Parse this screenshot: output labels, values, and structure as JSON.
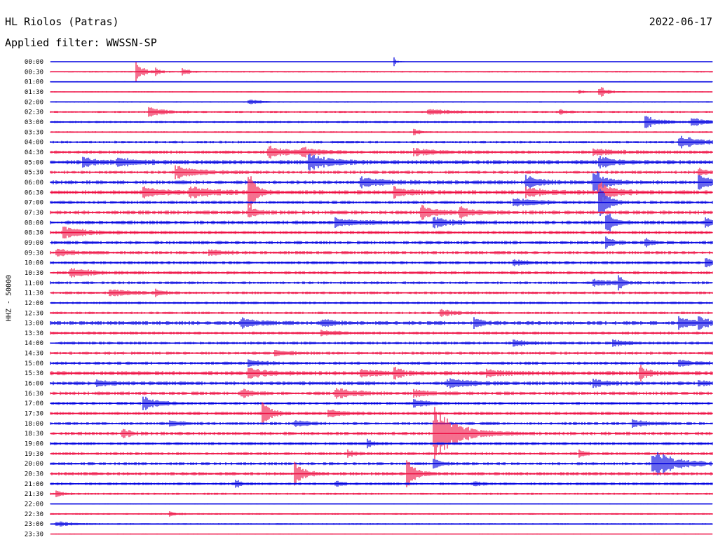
{
  "header": {
    "station": "HL Riolos (Patras)",
    "date": "2022-06-17",
    "filter": "Applied filter: WWSSN-SP"
  },
  "chart_data": {
    "type": "line",
    "chart_kind": "helicorder",
    "ylabel": "HHZ - 50000",
    "colors": [
      "#0000e0",
      "#ee1144"
    ],
    "rows": [
      {
        "label": "00:00",
        "color": "#0000e0",
        "noise": 0.3,
        "events": [
          {
            "t": 0.52,
            "amp": 6,
            "dur": 0.004
          }
        ]
      },
      {
        "label": "00:30",
        "color": "#ee1144",
        "noise": 0.7,
        "events": [
          {
            "t": 0.13,
            "amp": 16,
            "dur": 0.01
          },
          {
            "t": 0.16,
            "amp": 6,
            "dur": 0.006
          },
          {
            "t": 0.2,
            "amp": 7,
            "dur": 0.008
          }
        ]
      },
      {
        "label": "01:00",
        "color": "#0000e0",
        "noise": 0.5,
        "events": []
      },
      {
        "label": "01:30",
        "color": "#ee1144",
        "noise": 0.5,
        "events": [
          {
            "t": 0.8,
            "amp": 4,
            "dur": 0.005
          },
          {
            "t": 0.83,
            "amp": 9,
            "dur": 0.01
          }
        ]
      },
      {
        "label": "02:00",
        "color": "#0000e0",
        "noise": 0.6,
        "events": [
          {
            "t": 0.3,
            "amp": 3,
            "dur": 0.02
          }
        ]
      },
      {
        "label": "02:30",
        "color": "#ee1144",
        "noise": 1.0,
        "events": [
          {
            "t": 0.15,
            "amp": 7,
            "dur": 0.02
          },
          {
            "t": 0.57,
            "amp": 4,
            "dur": 0.04
          },
          {
            "t": 0.77,
            "amp": 3,
            "dur": 0.01
          }
        ]
      },
      {
        "label": "03:00",
        "color": "#0000e0",
        "noise": 1.0,
        "events": [
          {
            "t": 0.9,
            "amp": 8,
            "dur": 0.02
          },
          {
            "t": 0.97,
            "amp": 6,
            "dur": 0.02
          }
        ]
      },
      {
        "label": "03:30",
        "color": "#ee1144",
        "noise": 0.8,
        "events": [
          {
            "t": 0.55,
            "amp": 4,
            "dur": 0.01
          }
        ]
      },
      {
        "label": "04:00",
        "color": "#0000e0",
        "noise": 1.2,
        "events": [
          {
            "t": 0.95,
            "amp": 9,
            "dur": 0.03
          }
        ]
      },
      {
        "label": "04:30",
        "color": "#ee1144",
        "noise": 1.5,
        "events": [
          {
            "t": 0.33,
            "amp": 8,
            "dur": 0.03
          },
          {
            "t": 0.38,
            "amp": 6,
            "dur": 0.02
          },
          {
            "t": 0.55,
            "amp": 5,
            "dur": 0.03
          },
          {
            "t": 0.82,
            "amp": 5,
            "dur": 0.03
          }
        ]
      },
      {
        "label": "05:00",
        "color": "#0000e0",
        "noise": 2.0,
        "events": [
          {
            "t": 0.05,
            "amp": 6,
            "dur": 0.02
          },
          {
            "t": 0.1,
            "amp": 5,
            "dur": 0.03
          },
          {
            "t": 0.39,
            "amp": 12,
            "dur": 0.03
          },
          {
            "t": 0.83,
            "amp": 8,
            "dur": 0.02
          }
        ]
      },
      {
        "label": "05:30",
        "color": "#ee1144",
        "noise": 1.5,
        "events": [
          {
            "t": 0.19,
            "amp": 9,
            "dur": 0.03
          },
          {
            "t": 0.98,
            "amp": 6,
            "dur": 0.01
          }
        ]
      },
      {
        "label": "06:00",
        "color": "#0000e0",
        "noise": 1.8,
        "events": [
          {
            "t": 0.47,
            "amp": 7,
            "dur": 0.03
          },
          {
            "t": 0.72,
            "amp": 9,
            "dur": 0.02
          },
          {
            "t": 0.82,
            "amp": 22,
            "dur": 0.015
          },
          {
            "t": 0.98,
            "amp": 10,
            "dur": 0.02
          }
        ]
      },
      {
        "label": "06:30",
        "color": "#ee1144",
        "noise": 2.0,
        "events": [
          {
            "t": 0.14,
            "amp": 7,
            "dur": 0.03
          },
          {
            "t": 0.21,
            "amp": 9,
            "dur": 0.03
          },
          {
            "t": 0.3,
            "amp": 28,
            "dur": 0.01
          },
          {
            "t": 0.52,
            "amp": 7,
            "dur": 0.02
          },
          {
            "t": 0.72,
            "amp": 6,
            "dur": 0.03
          },
          {
            "t": 0.83,
            "amp": 14,
            "dur": 0.02
          }
        ]
      },
      {
        "label": "07:00",
        "color": "#0000e0",
        "noise": 1.5,
        "events": [
          {
            "t": 0.7,
            "amp": 6,
            "dur": 0.03
          },
          {
            "t": 0.83,
            "amp": 30,
            "dur": 0.01
          }
        ]
      },
      {
        "label": "07:30",
        "color": "#ee1144",
        "noise": 1.8,
        "events": [
          {
            "t": 0.3,
            "amp": 10,
            "dur": 0.01
          },
          {
            "t": 0.56,
            "amp": 11,
            "dur": 0.02
          },
          {
            "t": 0.62,
            "amp": 7,
            "dur": 0.02
          }
        ]
      },
      {
        "label": "08:00",
        "color": "#0000e0",
        "noise": 1.8,
        "events": [
          {
            "t": 0.43,
            "amp": 6,
            "dur": 0.03
          },
          {
            "t": 0.58,
            "amp": 8,
            "dur": 0.02
          },
          {
            "t": 0.84,
            "amp": 20,
            "dur": 0.01
          },
          {
            "t": 0.99,
            "amp": 9,
            "dur": 0.01
          }
        ]
      },
      {
        "label": "08:30",
        "color": "#ee1144",
        "noise": 1.6,
        "events": [
          {
            "t": 0.02,
            "amp": 8,
            "dur": 0.03
          }
        ]
      },
      {
        "label": "09:00",
        "color": "#0000e0",
        "noise": 1.6,
        "events": [
          {
            "t": 0.84,
            "amp": 8,
            "dur": 0.01
          },
          {
            "t": 0.9,
            "amp": 6,
            "dur": 0.01
          }
        ]
      },
      {
        "label": "09:30",
        "color": "#ee1144",
        "noise": 1.5,
        "events": [
          {
            "t": 0.01,
            "amp": 5,
            "dur": 0.02
          },
          {
            "t": 0.24,
            "amp": 4,
            "dur": 0.02
          }
        ]
      },
      {
        "label": "10:00",
        "color": "#0000e0",
        "noise": 1.5,
        "events": [
          {
            "t": 0.7,
            "amp": 4,
            "dur": 0.02
          },
          {
            "t": 0.99,
            "amp": 8,
            "dur": 0.01
          }
        ]
      },
      {
        "label": "10:30",
        "color": "#ee1144",
        "noise": 1.5,
        "events": [
          {
            "t": 0.03,
            "amp": 7,
            "dur": 0.03
          }
        ]
      },
      {
        "label": "11:00",
        "color": "#0000e0",
        "noise": 1.3,
        "events": [
          {
            "t": 0.82,
            "amp": 5,
            "dur": 0.03
          },
          {
            "t": 0.86,
            "amp": 12,
            "dur": 0.005
          }
        ]
      },
      {
        "label": "11:30",
        "color": "#ee1144",
        "noise": 1.3,
        "events": [
          {
            "t": 0.09,
            "amp": 5,
            "dur": 0.03
          },
          {
            "t": 0.16,
            "amp": 4,
            "dur": 0.01
          }
        ]
      },
      {
        "label": "12:00",
        "color": "#0000e0",
        "noise": 1.2,
        "events": []
      },
      {
        "label": "12:30",
        "color": "#ee1144",
        "noise": 1.2,
        "events": [
          {
            "t": 0.59,
            "amp": 5,
            "dur": 0.02
          }
        ]
      },
      {
        "label": "13:00",
        "color": "#0000e0",
        "noise": 1.8,
        "events": [
          {
            "t": 0.29,
            "amp": 7,
            "dur": 0.02
          },
          {
            "t": 0.41,
            "amp": 5,
            "dur": 0.02
          },
          {
            "t": 0.64,
            "amp": 8,
            "dur": 0.01
          },
          {
            "t": 0.95,
            "amp": 9,
            "dur": 0.02
          },
          {
            "t": 0.98,
            "amp": 6,
            "dur": 0.02
          }
        ]
      },
      {
        "label": "13:30",
        "color": "#ee1144",
        "noise": 1.4,
        "events": [
          {
            "t": 0.41,
            "amp": 4,
            "dur": 0.02
          }
        ]
      },
      {
        "label": "14:00",
        "color": "#0000e0",
        "noise": 1.4,
        "events": [
          {
            "t": 0.7,
            "amp": 4,
            "dur": 0.02
          },
          {
            "t": 0.85,
            "amp": 4,
            "dur": 0.02
          }
        ]
      },
      {
        "label": "14:30",
        "color": "#ee1144",
        "noise": 1.4,
        "events": [
          {
            "t": 0.34,
            "amp": 4,
            "dur": 0.02
          }
        ]
      },
      {
        "label": "15:00",
        "color": "#0000e0",
        "noise": 1.5,
        "events": [
          {
            "t": 0.3,
            "amp": 5,
            "dur": 0.02
          },
          {
            "t": 0.95,
            "amp": 4,
            "dur": 0.02
          }
        ]
      },
      {
        "label": "15:30",
        "color": "#ee1144",
        "noise": 2.0,
        "events": [
          {
            "t": 0.3,
            "amp": 8,
            "dur": 0.02
          },
          {
            "t": 0.47,
            "amp": 6,
            "dur": 0.02
          },
          {
            "t": 0.52,
            "amp": 9,
            "dur": 0.01
          },
          {
            "t": 0.66,
            "amp": 5,
            "dur": 0.02
          },
          {
            "t": 0.89,
            "amp": 12,
            "dur": 0.01
          }
        ]
      },
      {
        "label": "16:00",
        "color": "#0000e0",
        "noise": 1.8,
        "events": [
          {
            "t": 0.07,
            "amp": 4,
            "dur": 0.02
          },
          {
            "t": 0.6,
            "amp": 6,
            "dur": 0.03
          },
          {
            "t": 0.82,
            "amp": 5,
            "dur": 0.02
          },
          {
            "t": 0.98,
            "amp": 4,
            "dur": 0.01
          }
        ]
      },
      {
        "label": "16:30",
        "color": "#ee1144",
        "noise": 1.6,
        "events": [
          {
            "t": 0.29,
            "amp": 5,
            "dur": 0.02
          },
          {
            "t": 0.43,
            "amp": 7,
            "dur": 0.03
          },
          {
            "t": 0.55,
            "amp": 5,
            "dur": 0.02
          }
        ]
      },
      {
        "label": "17:00",
        "color": "#0000e0",
        "noise": 1.4,
        "events": [
          {
            "t": 0.14,
            "amp": 10,
            "dur": 0.02
          },
          {
            "t": 0.55,
            "amp": 5,
            "dur": 0.02
          }
        ]
      },
      {
        "label": "17:30",
        "color": "#ee1144",
        "noise": 1.6,
        "events": [
          {
            "t": 0.32,
            "amp": 22,
            "dur": 0.01
          },
          {
            "t": 0.42,
            "amp": 5,
            "dur": 0.02
          }
        ]
      },
      {
        "label": "18:00",
        "color": "#0000e0",
        "noise": 1.4,
        "events": [
          {
            "t": 0.18,
            "amp": 4,
            "dur": 0.02
          },
          {
            "t": 0.37,
            "amp": 4,
            "dur": 0.02
          },
          {
            "t": 0.88,
            "amp": 5,
            "dur": 0.02
          }
        ]
      },
      {
        "label": "18:30",
        "color": "#ee1144",
        "noise": 1.6,
        "events": [
          {
            "t": 0.11,
            "amp": 7,
            "dur": 0.01
          },
          {
            "t": 0.58,
            "amp": 40,
            "dur": 0.03
          }
        ]
      },
      {
        "label": "19:00",
        "color": "#0000e0",
        "noise": 1.4,
        "events": [
          {
            "t": 0.48,
            "amp": 5,
            "dur": 0.01
          }
        ]
      },
      {
        "label": "19:30",
        "color": "#ee1144",
        "noise": 1.4,
        "events": [
          {
            "t": 0.45,
            "amp": 5,
            "dur": 0.01
          },
          {
            "t": 0.8,
            "amp": 4,
            "dur": 0.01
          }
        ]
      },
      {
        "label": "20:00",
        "color": "#0000e0",
        "noise": 1.4,
        "events": [
          {
            "t": 0.58,
            "amp": 7,
            "dur": 0.01
          },
          {
            "t": 0.91,
            "amp": 22,
            "dur": 0.03
          }
        ]
      },
      {
        "label": "20:30",
        "color": "#ee1144",
        "noise": 1.6,
        "events": [
          {
            "t": 0.37,
            "amp": 22,
            "dur": 0.01
          },
          {
            "t": 0.54,
            "amp": 20,
            "dur": 0.01
          }
        ]
      },
      {
        "label": "21:00",
        "color": "#0000e0",
        "noise": 1.3,
        "events": [
          {
            "t": 0.28,
            "amp": 5,
            "dur": 0.01
          },
          {
            "t": 0.43,
            "amp": 4,
            "dur": 0.01
          },
          {
            "t": 0.64,
            "amp": 4,
            "dur": 0.01
          }
        ]
      },
      {
        "label": "21:30",
        "color": "#ee1144",
        "noise": 1.0,
        "events": [
          {
            "t": 0.01,
            "amp": 4,
            "dur": 0.01
          }
        ]
      },
      {
        "label": "22:00",
        "color": "#0000e0",
        "noise": 0.4,
        "events": []
      },
      {
        "label": "22:30",
        "color": "#ee1144",
        "noise": 0.8,
        "events": [
          {
            "t": 0.18,
            "amp": 3,
            "dur": 0.01
          }
        ]
      },
      {
        "label": "23:00",
        "color": "#0000e0",
        "noise": 0.7,
        "events": [
          {
            "t": 0.01,
            "amp": 4,
            "dur": 0.02
          }
        ]
      },
      {
        "label": "23:30",
        "color": "#ee1144",
        "noise": 0.4,
        "events": []
      }
    ]
  }
}
